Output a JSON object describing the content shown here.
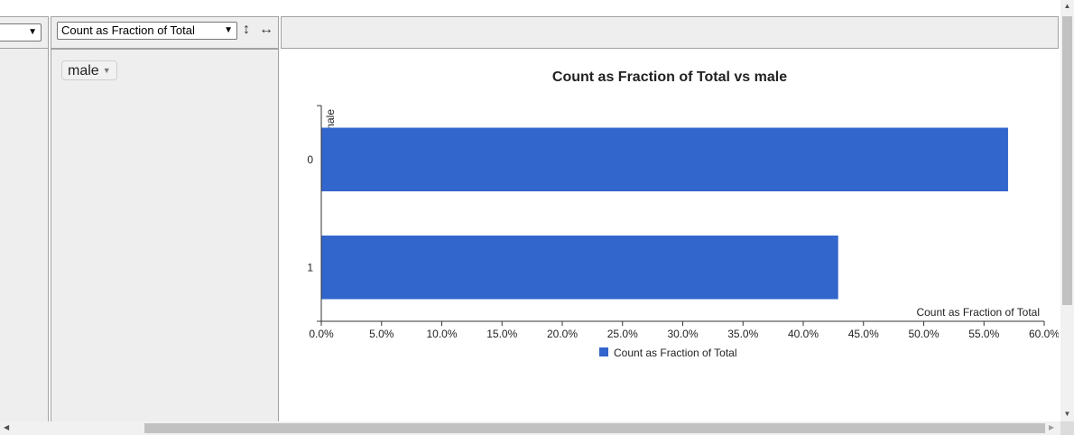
{
  "toolbar": {
    "left_select_value": "",
    "aggregator_select_value": "Count as Fraction of Total",
    "sort_rows_icon": "↕",
    "sort_cols_icon": "↔"
  },
  "row_fields": [
    {
      "label": "male"
    }
  ],
  "chart_data": {
    "type": "bar",
    "orientation": "horizontal",
    "title": "Count as Fraction of Total vs male",
    "xlabel": "Count as Fraction of Total",
    "ylabel": "male",
    "categories": [
      "0",
      "1"
    ],
    "series": [
      {
        "name": "Count as Fraction of Total",
        "values": [
          0.57,
          0.429
        ],
        "color": "#3366cc"
      }
    ],
    "xlim": [
      0,
      0.6
    ],
    "xticks": [
      "0.0%",
      "5.0%",
      "10.0%",
      "15.0%",
      "20.0%",
      "25.0%",
      "30.0%",
      "35.0%",
      "40.0%",
      "45.0%",
      "50.0%",
      "55.0%",
      "60.0%"
    ],
    "grid": false,
    "legend_position": "bottom"
  }
}
